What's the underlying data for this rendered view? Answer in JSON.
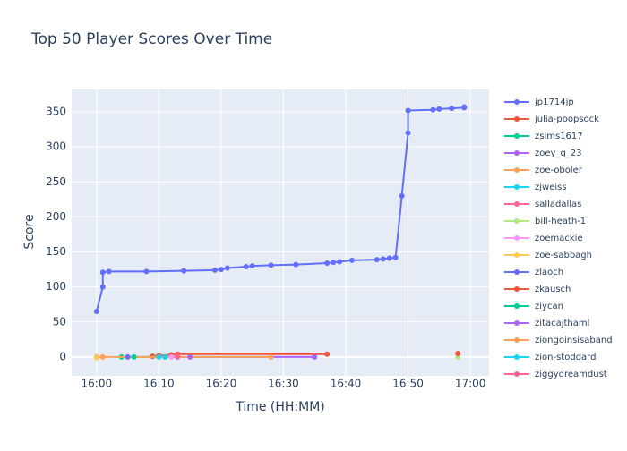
{
  "chart_data": {
    "type": "line",
    "title": "Top 50 Player Scores Over Time",
    "x_label": "Time (HH:MM)",
    "y_label": "Score",
    "xlim": [
      "15:56",
      "17:03"
    ],
    "ylim": [
      -27,
      382
    ],
    "xticks": [
      "16:00",
      "16:10",
      "16:20",
      "16:30",
      "16:40",
      "16:50",
      "17:00"
    ],
    "yticks": [
      0,
      50,
      100,
      150,
      200,
      250,
      300,
      350
    ],
    "grid": true,
    "legend": "right",
    "series": [
      {
        "name": "jp1714jp",
        "color": "#636efa",
        "x": [
          "16:00",
          "16:01",
          "16:01",
          "16:02",
          "16:08",
          "16:14",
          "16:19",
          "16:20",
          "16:21",
          "16:24",
          "16:25",
          "16:28",
          "16:32",
          "16:37",
          "16:38",
          "16:39",
          "16:41",
          "16:45",
          "16:46",
          "16:47",
          "16:48",
          "16:49",
          "16:50",
          "16:50",
          "16:54",
          "16:55",
          "16:57",
          "16:59",
          "16:59"
        ],
        "values": [
          65,
          100,
          121,
          122,
          122,
          123,
          124,
          125,
          127,
          129,
          130,
          131,
          132,
          134,
          135,
          136,
          138,
          139,
          140,
          141,
          142,
          230,
          320,
          352,
          353,
          354,
          355,
          356,
          357
        ]
      },
      {
        "name": "julia-poopsock",
        "color": "#EF553B",
        "x": [
          "16:09",
          "16:10",
          "16:12",
          "16:13",
          "16:37"
        ],
        "values": [
          1,
          2,
          3,
          4,
          4
        ]
      },
      {
        "name": "zsims1617",
        "color": "#00cc96",
        "x": [
          "16:04",
          "16:11"
        ],
        "values": [
          0,
          0
        ]
      },
      {
        "name": "zoey_g_23",
        "color": "#ab63fa",
        "x": [
          "16:13",
          "16:35"
        ],
        "values": [
          0,
          0
        ]
      },
      {
        "name": "zoe-oboler",
        "color": "#FFA15A",
        "x": [
          "16:00",
          "16:28"
        ],
        "values": [
          0,
          0
        ]
      },
      {
        "name": "zjweiss",
        "color": "#19d3f3",
        "x": [
          "16:11"
        ],
        "values": [
          0
        ]
      },
      {
        "name": "salladallas",
        "color": "#FF6692",
        "x": [
          "16:13"
        ],
        "values": [
          1
        ]
      },
      {
        "name": "bill-heath-1",
        "color": "#B6E880",
        "x": [
          "16:58"
        ],
        "values": [
          0
        ]
      },
      {
        "name": "zoemackie",
        "color": "#FF97FF",
        "x": [
          "16:12"
        ],
        "values": [
          0
        ]
      },
      {
        "name": "zoe-sabbagh",
        "color": "#FECB52",
        "x": [
          "16:00"
        ],
        "values": [
          -1
        ]
      },
      {
        "name": "zlaoch",
        "color": "#636efa",
        "x": [
          "16:05"
        ],
        "values": [
          0
        ]
      },
      {
        "name": "zkausch",
        "color": "#EF553B",
        "x": [
          "16:58"
        ],
        "values": [
          5
        ]
      },
      {
        "name": "ziycan",
        "color": "#00cc96",
        "x": [
          "16:06"
        ],
        "values": [
          0
        ]
      },
      {
        "name": "zitacajthaml",
        "color": "#ab63fa",
        "x": [
          "16:15"
        ],
        "values": [
          0
        ]
      },
      {
        "name": "ziongoinsisaband",
        "color": "#FFA15A",
        "x": [
          "16:01"
        ],
        "values": [
          0
        ]
      },
      {
        "name": "zion-stoddard",
        "color": "#19d3f3",
        "x": [
          "16:10"
        ],
        "values": [
          0
        ]
      },
      {
        "name": "ziggydreamdust",
        "color": "#FF6692",
        "x": [
          "16:13"
        ],
        "values": [
          1
        ]
      }
    ]
  }
}
